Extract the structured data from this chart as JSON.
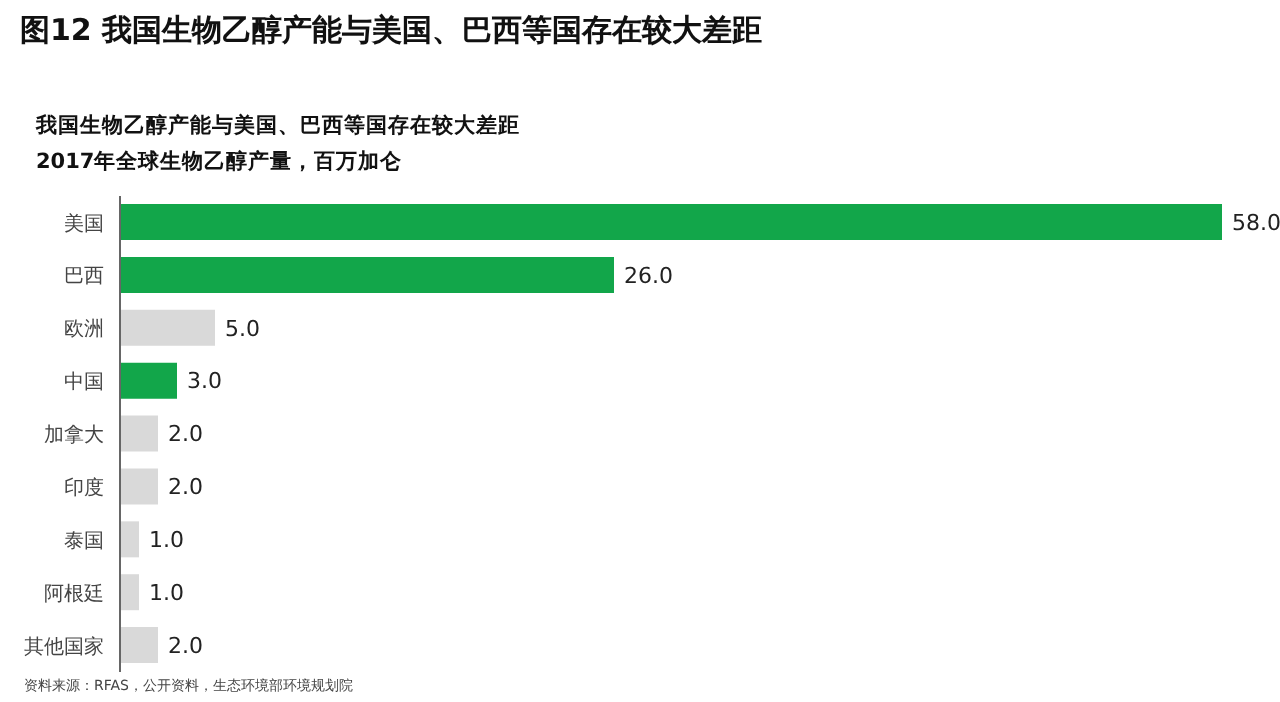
{
  "chart_data": {
    "type": "bar",
    "orientation": "horizontal",
    "title": "图12 我国生物乙醇产能与美国、巴西等国存在较大差距",
    "subtitle": "我国生物乙醇产能与美国、巴西等国存在较大差距\n2017年全球生物乙醇产量，百万加仑",
    "categories": [
      "美国",
      "巴西",
      "欧洲",
      "中国",
      "加拿大",
      "印度",
      "泰国",
      "阿根廷",
      "其他国家"
    ],
    "values": [
      58.0,
      26.0,
      5.0,
      3.0,
      2.0,
      2.0,
      1.0,
      1.0,
      2.0
    ],
    "value_labels": [
      "58.0",
      "26.0",
      "5.0",
      "3.0",
      "2.0",
      "2.0",
      "1.0",
      "1.0",
      "2.0"
    ],
    "colors": [
      "#12a64a",
      "#12a64a",
      "#d9d9d9",
      "#12a64a",
      "#d9d9d9",
      "#d9d9d9",
      "#d9d9d9",
      "#d9d9d9",
      "#d9d9d9"
    ],
    "xlim": [
      0,
      58
    ],
    "tick_labels": "y",
    "grid": false,
    "legend": false,
    "annotations": [
      "资料来源：RFAS，公开资料，生态环境部环境规划院"
    ]
  }
}
